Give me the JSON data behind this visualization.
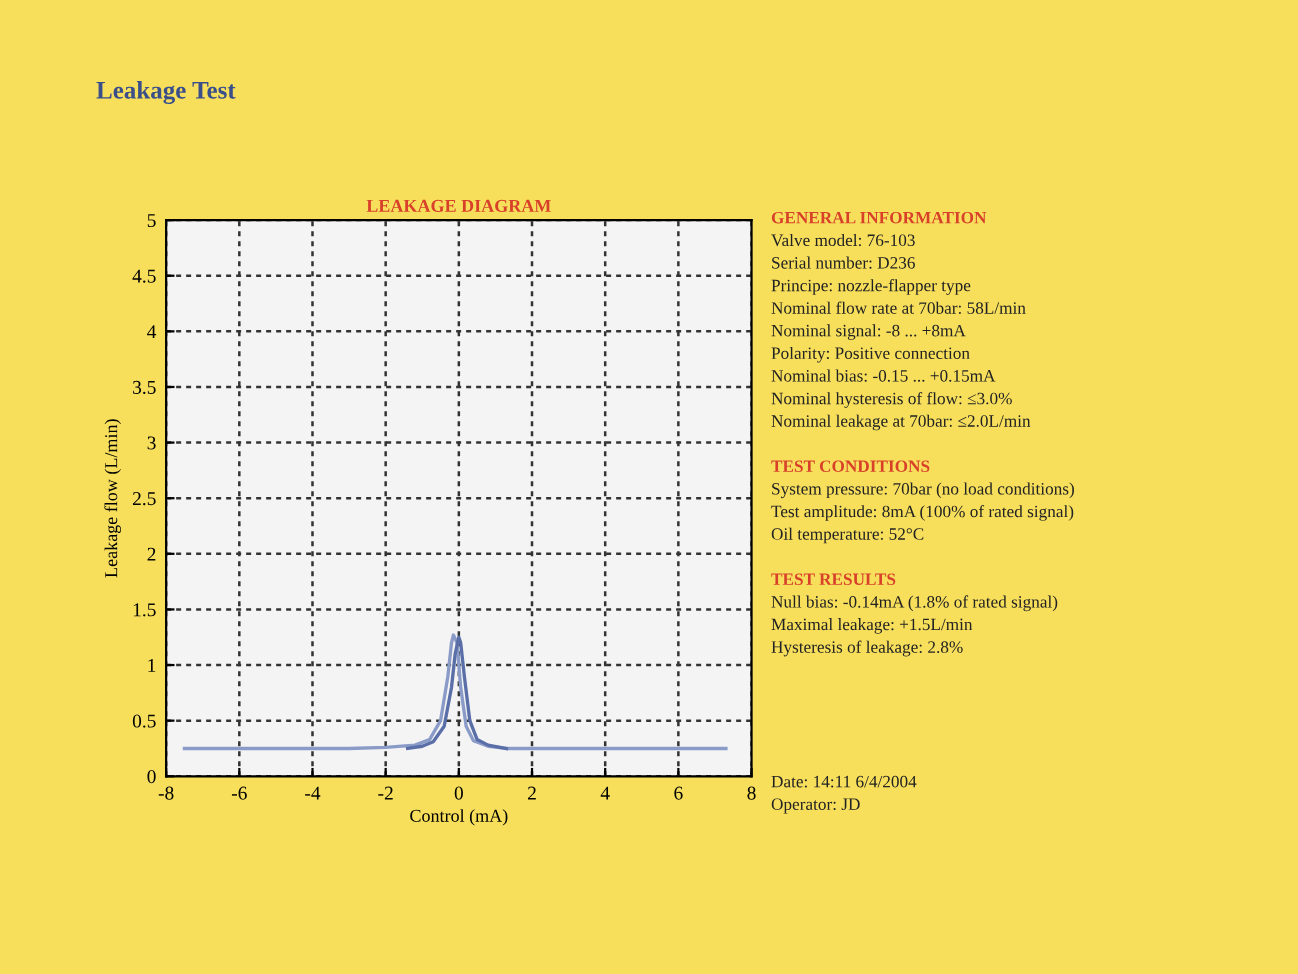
{
  "chart_data": {
    "type": "line",
    "title": "LEAKAGE DIAGRAM",
    "xlabel": "Control (mA)",
    "ylabel": "Leakage flow (L/min)",
    "series": [
      {
        "color": "#8a9bc8",
        "x": [
          -7.5,
          -3,
          -2,
          -1.2,
          -0.8,
          -0.5,
          -0.3,
          -0.2,
          -0.15,
          -0.05,
          0.05,
          0.2,
          0.4,
          0.8,
          1.3,
          7.3
        ],
        "values": [
          0.25,
          0.25,
          0.26,
          0.28,
          0.33,
          0.5,
          0.9,
          1.2,
          1.27,
          1.2,
          0.8,
          0.45,
          0.32,
          0.27,
          0.25,
          0.25
        ]
      },
      {
        "color": "#5a6fa8",
        "x": [
          -1.4,
          -1.0,
          -0.7,
          -0.4,
          -0.2,
          -0.1,
          0.0,
          0.05,
          0.15,
          0.3,
          0.5,
          0.8,
          1.3
        ],
        "values": [
          0.25,
          0.27,
          0.31,
          0.45,
          0.8,
          1.1,
          1.25,
          1.2,
          0.9,
          0.5,
          0.33,
          0.28,
          0.25
        ]
      }
    ],
    "xlim": [
      -8,
      8
    ],
    "xticks": [
      -8,
      -6,
      -4,
      -2,
      0,
      2,
      4,
      6,
      8
    ],
    "ylim": [
      0,
      5
    ],
    "yticks": [
      0,
      0.5,
      1,
      1.5,
      2,
      2.5,
      3,
      3.5,
      4,
      4.5,
      5
    ],
    "grid": true,
    "marker": "none",
    "line_style": "solid",
    "annotations": [
      "Leakage Test",
      "GENERAL INFORMATION",
      "Valve model: 76-103",
      "Serial number: D236",
      "Principe: nozzle-flapper type",
      "Nominal flow rate at 70bar: 58L/min",
      "Nominal signal: -8 ... +8mA",
      "Polarity: Positive connection",
      "Nominal bias: -0.15 ... +0.15mA",
      "Nominal hysteresis of flow: ≤3.0%",
      "Nominal leakage at 70bar: ≤2.0L/min",
      "TEST CONDITIONS",
      "System pressure: 70bar (no load conditions)",
      "Test amplitude: 8mA (100% of rated signal)",
      "Oil temperature: 52°C",
      "TEST RESULTS",
      "Null bias: -0.14mA (1.8% of rated signal)",
      "Maximal leakage: +1.5L/min",
      "Hysteresis of leakage: 2.8%",
      "Date: 14:11 6/4/2004",
      "Operator: JD"
    ]
  }
}
